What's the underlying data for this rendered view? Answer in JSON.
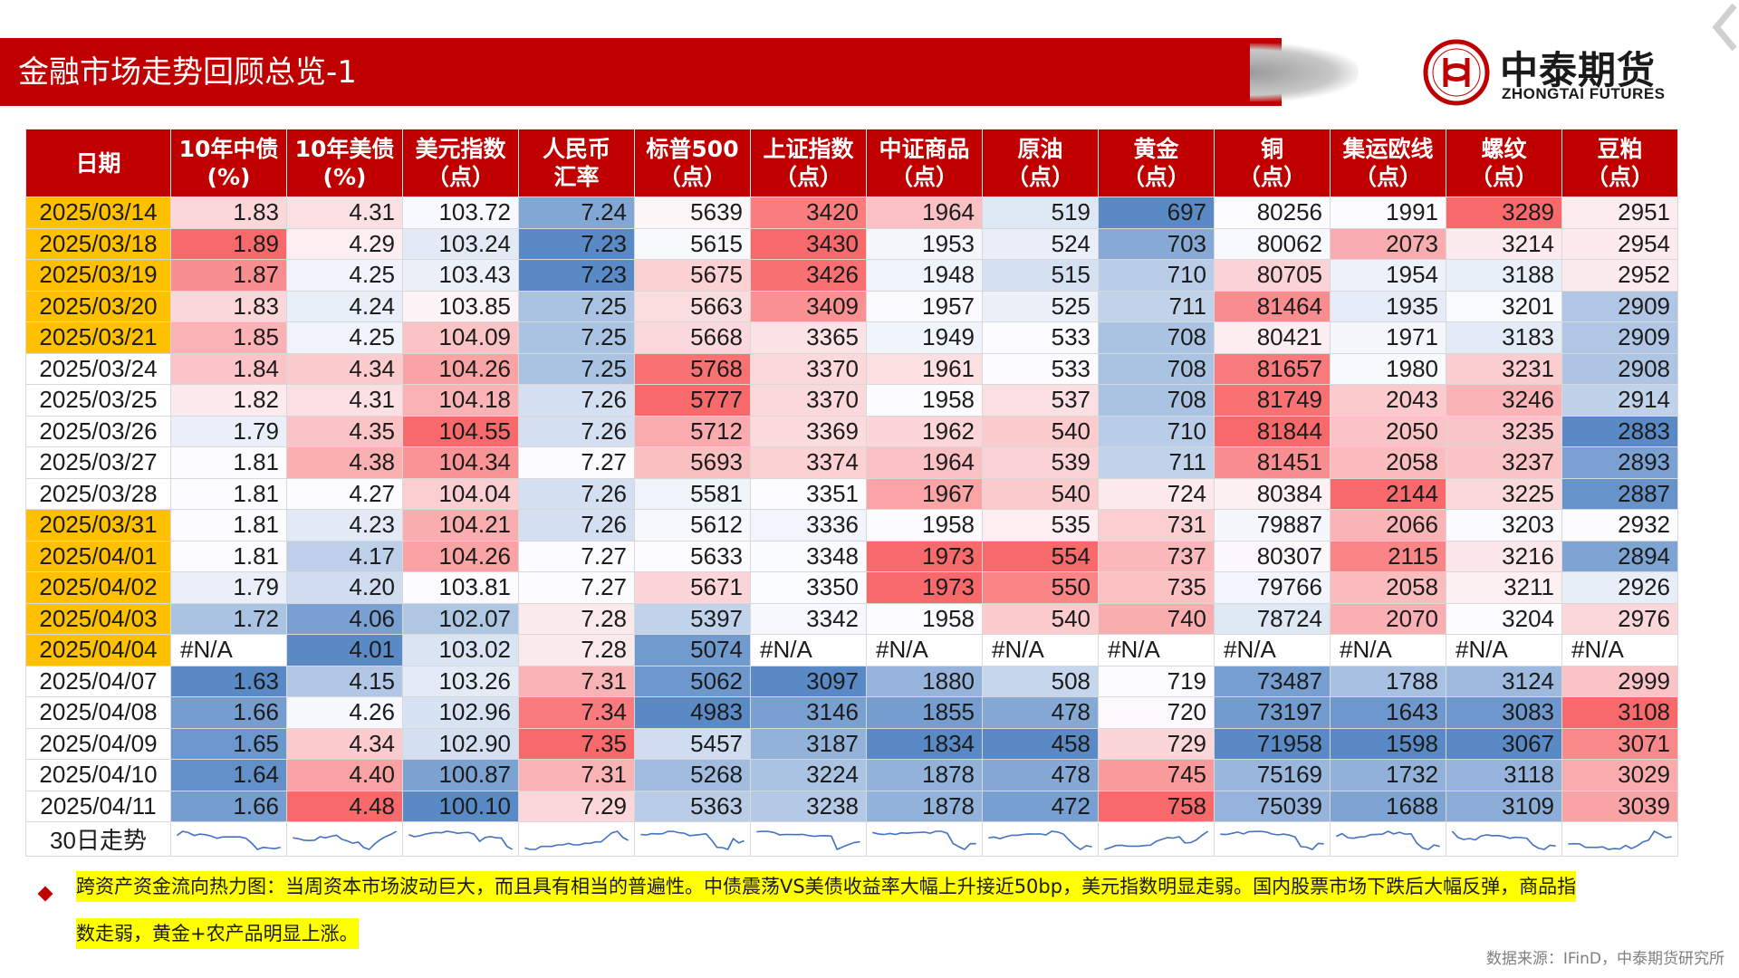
{
  "title": "金融市场走势回顾总览-1",
  "logo": {
    "cn": "中泰期货",
    "en": "ZHONGTAI FUTURES"
  },
  "colors": {
    "brand_red": "#c00000",
    "highlight_date": "#ffc000",
    "heat_red": "#f8696b",
    "heat_blue": "#5a8ac6",
    "note_highlight": "#ffff00"
  },
  "table": {
    "headers": [
      [
        "日期"
      ],
      [
        "10年中债",
        "(%)"
      ],
      [
        "10年美债",
        "(%)"
      ],
      [
        "美元指数",
        "（点）"
      ],
      [
        "人民币",
        "汇率"
      ],
      [
        "标普500",
        "（点）"
      ],
      [
        "上证指数",
        "（点）"
      ],
      [
        "中证商品",
        "（点）"
      ],
      [
        "原油",
        "（点）"
      ],
      [
        "黄金",
        "（点）"
      ],
      [
        "铜",
        "（点）"
      ],
      [
        "集运欧线",
        "（点）"
      ],
      [
        "螺纹",
        "（点）"
      ],
      [
        "豆粕",
        "（点）"
      ]
    ],
    "rows": [
      {
        "date": "2025/03/14",
        "highlight": true,
        "values": [
          "1.83",
          "4.31",
          "103.72",
          "7.24",
          "5639",
          "3420",
          "1964",
          "519",
          "697",
          "80256",
          "1991",
          "3289",
          "2951"
        ]
      },
      {
        "date": "2025/03/18",
        "highlight": true,
        "values": [
          "1.89",
          "4.29",
          "103.24",
          "7.23",
          "5615",
          "3430",
          "1953",
          "524",
          "703",
          "80062",
          "2073",
          "3214",
          "2954"
        ]
      },
      {
        "date": "2025/03/19",
        "highlight": true,
        "values": [
          "1.87",
          "4.25",
          "103.43",
          "7.23",
          "5675",
          "3426",
          "1948",
          "515",
          "710",
          "80705",
          "1954",
          "3188",
          "2952"
        ]
      },
      {
        "date": "2025/03/20",
        "highlight": true,
        "values": [
          "1.83",
          "4.24",
          "103.85",
          "7.25",
          "5663",
          "3409",
          "1957",
          "525",
          "711",
          "81464",
          "1935",
          "3201",
          "2909"
        ]
      },
      {
        "date": "2025/03/21",
        "highlight": true,
        "values": [
          "1.85",
          "4.25",
          "104.09",
          "7.25",
          "5668",
          "3365",
          "1949",
          "533",
          "708",
          "80421",
          "1971",
          "3183",
          "2909"
        ]
      },
      {
        "date": "2025/03/24",
        "highlight": false,
        "values": [
          "1.84",
          "4.34",
          "104.26",
          "7.25",
          "5768",
          "3370",
          "1961",
          "533",
          "708",
          "81657",
          "1980",
          "3231",
          "2908"
        ]
      },
      {
        "date": "2025/03/25",
        "highlight": false,
        "values": [
          "1.82",
          "4.31",
          "104.18",
          "7.26",
          "5777",
          "3370",
          "1958",
          "537",
          "708",
          "81749",
          "2043",
          "3246",
          "2914"
        ]
      },
      {
        "date": "2025/03/26",
        "highlight": false,
        "values": [
          "1.79",
          "4.35",
          "104.55",
          "7.26",
          "5712",
          "3369",
          "1962",
          "540",
          "710",
          "81844",
          "2050",
          "3235",
          "2883"
        ]
      },
      {
        "date": "2025/03/27",
        "highlight": false,
        "values": [
          "1.81",
          "4.38",
          "104.34",
          "7.27",
          "5693",
          "3374",
          "1964",
          "539",
          "711",
          "81451",
          "2058",
          "3237",
          "2893"
        ]
      },
      {
        "date": "2025/03/28",
        "highlight": false,
        "values": [
          "1.81",
          "4.27",
          "104.04",
          "7.26",
          "5581",
          "3351",
          "1967",
          "540",
          "724",
          "80384",
          "2144",
          "3225",
          "2887"
        ]
      },
      {
        "date": "2025/03/31",
        "highlight": true,
        "values": [
          "1.81",
          "4.23",
          "104.21",
          "7.26",
          "5612",
          "3336",
          "1958",
          "535",
          "731",
          "79887",
          "2066",
          "3203",
          "2932"
        ]
      },
      {
        "date": "2025/04/01",
        "highlight": true,
        "values": [
          "1.81",
          "4.17",
          "104.26",
          "7.27",
          "5633",
          "3348",
          "1973",
          "554",
          "737",
          "80307",
          "2115",
          "3216",
          "2894"
        ]
      },
      {
        "date": "2025/04/02",
        "highlight": true,
        "values": [
          "1.79",
          "4.20",
          "103.81",
          "7.27",
          "5671",
          "3350",
          "1973",
          "550",
          "735",
          "79766",
          "2058",
          "3211",
          "2926"
        ]
      },
      {
        "date": "2025/04/03",
        "highlight": true,
        "values": [
          "1.72",
          "4.06",
          "102.07",
          "7.28",
          "5397",
          "3342",
          "1958",
          "540",
          "740",
          "78724",
          "2070",
          "3204",
          "2976"
        ]
      },
      {
        "date": "2025/04/04",
        "highlight": true,
        "values": [
          "#N/A",
          "4.01",
          "103.02",
          "7.28",
          "5074",
          "#N/A",
          "#N/A",
          "#N/A",
          "#N/A",
          "#N/A",
          "#N/A",
          "#N/A",
          "#N/A"
        ]
      },
      {
        "date": "2025/04/07",
        "highlight": false,
        "values": [
          "1.63",
          "4.15",
          "103.26",
          "7.31",
          "5062",
          "3097",
          "1880",
          "508",
          "719",
          "73487",
          "1788",
          "3124",
          "2999"
        ]
      },
      {
        "date": "2025/04/08",
        "highlight": false,
        "values": [
          "1.66",
          "4.26",
          "102.96",
          "7.34",
          "4983",
          "3146",
          "1855",
          "478",
          "720",
          "73197",
          "1643",
          "3083",
          "3108"
        ]
      },
      {
        "date": "2025/04/09",
        "highlight": false,
        "values": [
          "1.65",
          "4.34",
          "102.90",
          "7.35",
          "5457",
          "3187",
          "1834",
          "458",
          "729",
          "71958",
          "1598",
          "3067",
          "3071"
        ]
      },
      {
        "date": "2025/04/10",
        "highlight": false,
        "values": [
          "1.64",
          "4.40",
          "100.87",
          "7.31",
          "5268",
          "3224",
          "1878",
          "478",
          "745",
          "75169",
          "1732",
          "3118",
          "3029"
        ]
      },
      {
        "date": "2025/04/11",
        "highlight": false,
        "values": [
          "1.66",
          "4.48",
          "100.10",
          "7.29",
          "5363",
          "3238",
          "1878",
          "472",
          "758",
          "75039",
          "1688",
          "3109",
          "3039"
        ]
      }
    ],
    "sparkline_label": "30日走势"
  },
  "note": {
    "line1": "跨资产资金流向热力图：当周资本市场波动巨大，而且具有相当的普遍性。中债震荡VS美债收益率大幅上升接近50bp，美元指数明显走弱。国内股票市场下跌后大幅反弹，商品指",
    "line2": "数走弱，黄金+农产品明显上涨。"
  },
  "source": "数据来源：IFinD，中泰期货研究所"
}
